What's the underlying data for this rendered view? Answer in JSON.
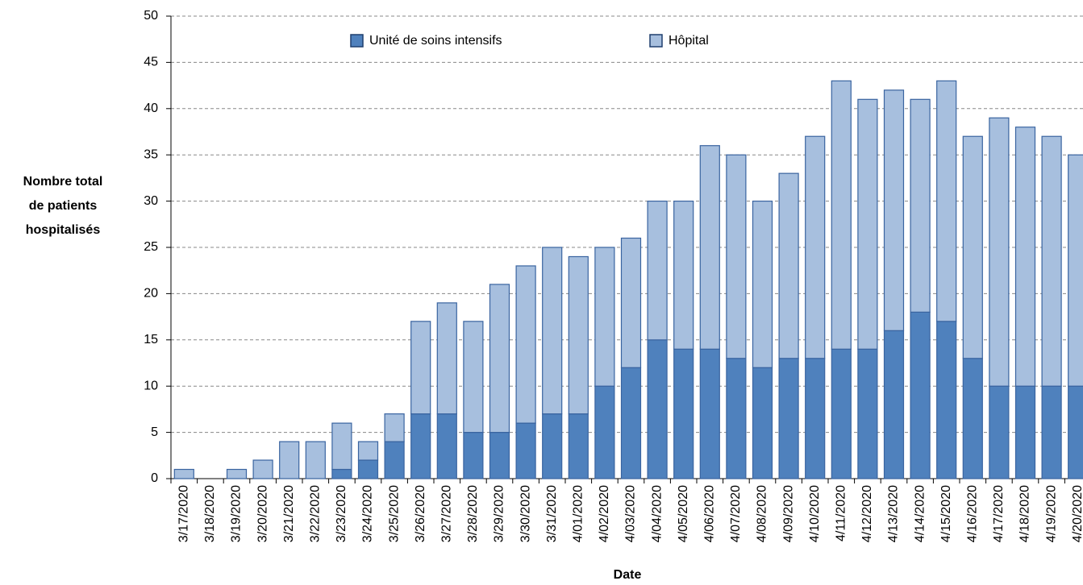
{
  "chart_data": {
    "type": "stacked_bar",
    "y_label": [
      "Nombre total",
      "de patients",
      "hospitalisés"
    ],
    "x_label": "Date",
    "categories": [
      "3/17/2020",
      "3/18/2020",
      "3/19/2020",
      "3/20/2020",
      "3/21/2020",
      "3/22/2020",
      "3/23/2020",
      "3/24/2020",
      "3/25/2020",
      "3/26/2020",
      "3/27/2020",
      "3/28/2020",
      "3/29/2020",
      "3/30/2020",
      "3/31/2020",
      "4/01/2020",
      "4/02/2020",
      "4/03/2020",
      "4/04/2020",
      "4/05/2020",
      "4/06/2020",
      "4/07/2020",
      "4/08/2020",
      "4/09/2020",
      "4/10/2020",
      "4/11/2020",
      "4/12/2020",
      "4/13/2020",
      "4/14/2020",
      "4/15/2020",
      "4/16/2020",
      "4/17/2020",
      "4/18/2020",
      "4/19/2020",
      "4/20/2020"
    ],
    "series": [
      {
        "name": "Unité de soins intensifs",
        "color": "#4f81bd",
        "values": [
          0,
          0,
          0,
          0,
          0,
          0,
          1,
          2,
          4,
          7,
          7,
          5,
          5,
          6,
          7,
          7,
          10,
          12,
          15,
          14,
          14,
          13,
          12,
          13,
          13,
          14,
          14,
          16,
          18,
          17,
          13,
          10,
          10,
          10,
          10
        ]
      },
      {
        "name": "Hôpital",
        "color": "#a7bfde",
        "values": [
          1,
          0,
          1,
          2,
          4,
          4,
          5,
          2,
          3,
          10,
          12,
          12,
          16,
          17,
          18,
          17,
          15,
          14,
          15,
          16,
          22,
          22,
          18,
          20,
          24,
          29,
          27,
          26,
          23,
          26,
          24,
          29,
          28,
          27,
          25
        ]
      }
    ],
    "ylim": [
      0,
      50
    ],
    "yticks": [
      0,
      5,
      10,
      15,
      20,
      25,
      30,
      35,
      40,
      45,
      50
    ],
    "grid": true,
    "legend": "top"
  }
}
